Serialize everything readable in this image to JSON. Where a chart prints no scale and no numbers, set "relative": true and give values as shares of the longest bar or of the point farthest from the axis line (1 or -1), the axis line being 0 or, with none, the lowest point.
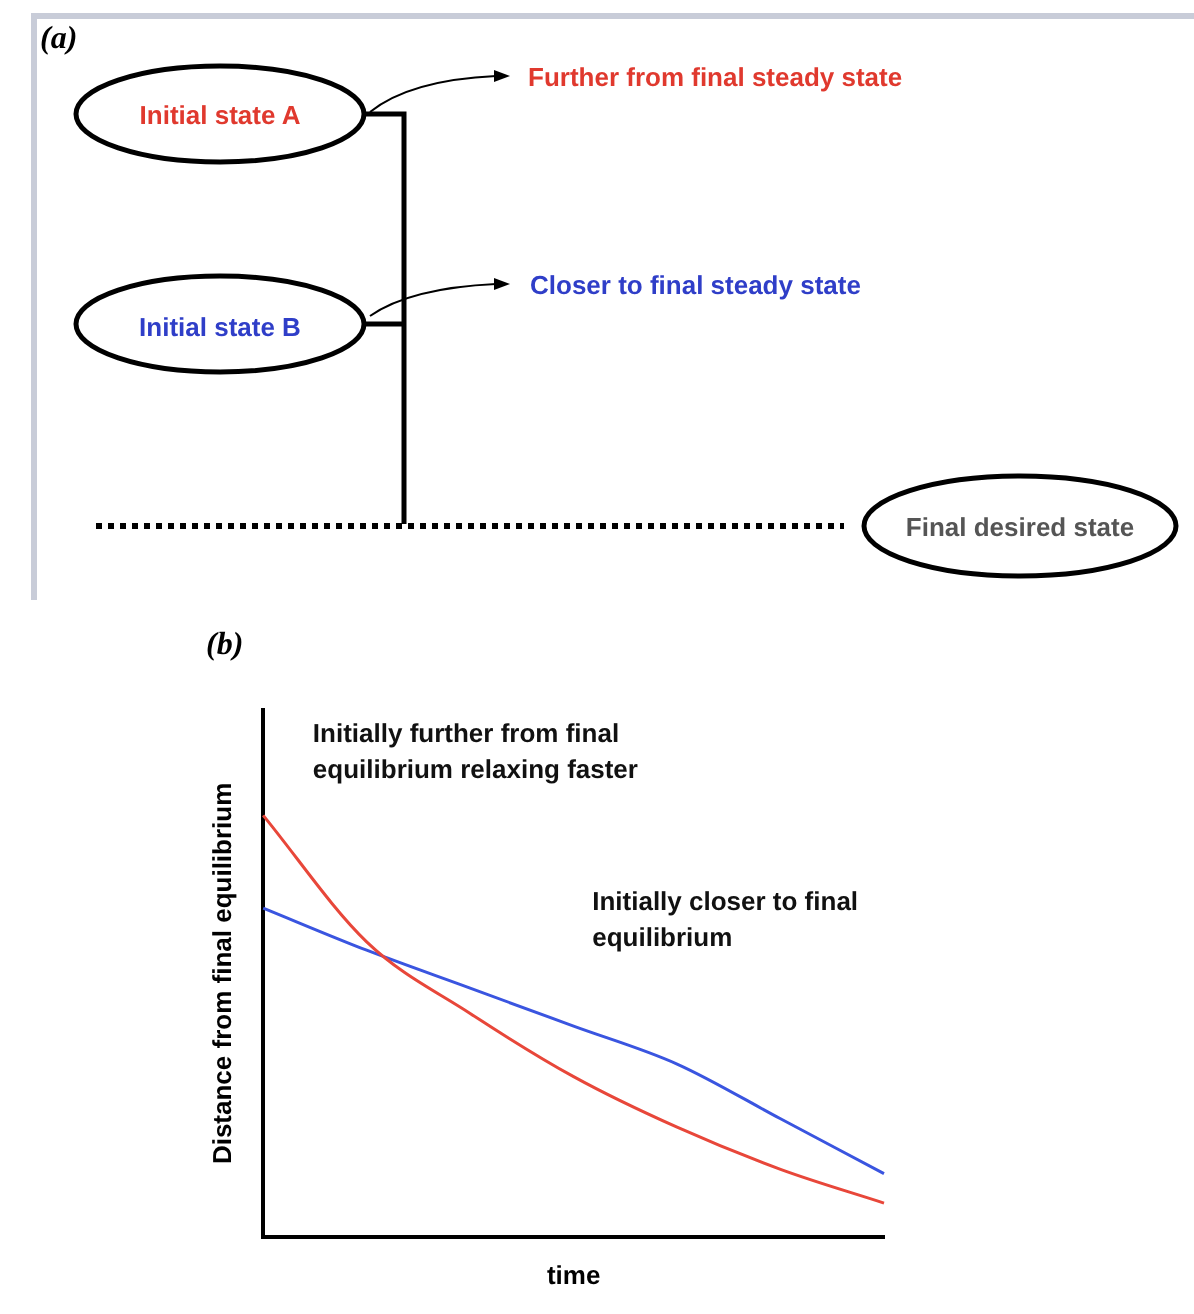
{
  "chart_data": [
    {
      "type": "other",
      "title": "(a)",
      "annotations": [
        "Initial state A",
        "Further from final steady state",
        "Initial state B",
        "Closer to final steady state",
        "Final desired state"
      ]
    },
    {
      "type": "line",
      "title": "(b)",
      "xlabel": "time",
      "ylabel": "Distance from final equilibrium",
      "relative": true,
      "marker": "none",
      "categories": [
        null,
        null,
        null,
        null,
        null,
        null,
        null
      ],
      "series": [
        {
          "name": "Initially further from final equilibrium relaxing faster",
          "color": "#e8473a",
          "values": [
            1,
            0.7,
            0.53,
            0.38,
            0.26,
            0.16,
            0.08
          ]
        },
        {
          "name": "Initially closer to final equilibrium",
          "color": "#3a55e0",
          "values": [
            0.78,
            0.68,
            0.59,
            0.5,
            0.41,
            0.28,
            0.15
          ]
        }
      ]
    }
  ]
}
